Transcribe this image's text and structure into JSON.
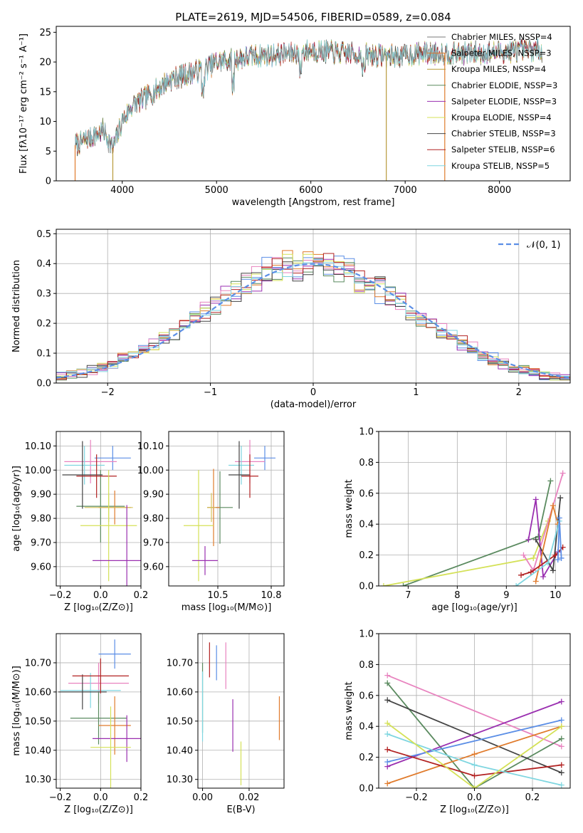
{
  "chart_data": [
    {
      "id": "spectrum",
      "type": "line",
      "title": "PLATE=2619, MJD=54506, FIBERID=0589, z=0.084",
      "xlabel": "wavelength [Angstrom, rest frame]",
      "ylabel": "Flux [fλ10⁻¹⁷ erg cm⁻² s⁻¹ A⁻¹]",
      "xlim": [
        3300,
        8750
      ],
      "ylim": [
        0,
        26
      ],
      "xticks": [
        4000,
        5000,
        6000,
        7000,
        8000
      ],
      "yticks": [
        0,
        5,
        10,
        15,
        20,
        25
      ],
      "legend_position": "top-right",
      "grid": false,
      "continuum": {
        "x": [
          3500,
          3800,
          3900,
          4000,
          4100,
          4300,
          4500,
          4700,
          4900,
          5000,
          5200,
          5400,
          5600,
          5800,
          6000,
          6300,
          6600,
          6900,
          7200,
          7500,
          7800,
          8100,
          8400
        ],
        "y": [
          6,
          8.5,
          5.5,
          10,
          12.5,
          14.5,
          17,
          18,
          19,
          20,
          20.5,
          21,
          21.2,
          21.5,
          22,
          21.5,
          21.2,
          21,
          21.5,
          21.5,
          21.5,
          21.8,
          22
        ]
      },
      "series": [
        {
          "name": "Chabrier MILES, N_SSP=4",
          "color": "#7a7a7a"
        },
        {
          "name": "Salpeter MILES, N_SSP=3",
          "color": "#e07b2c"
        },
        {
          "name": "Kroupa MILES, N_SSP=4",
          "color": "#b89a3a"
        },
        {
          "name": "Chabrier ELODIE, N_SSP=3",
          "color": "#5a8a5f"
        },
        {
          "name": "Salpeter ELODIE, N_SSP=3",
          "color": "#9a2fb0"
        },
        {
          "name": "Kroupa ELODIE, N_SSP=4",
          "color": "#d4e157"
        },
        {
          "name": "Chabrier STELIB, N_SSP=3",
          "color": "#444444"
        },
        {
          "name": "Salpeter STELIB, N_SSP=6",
          "color": "#b22222"
        },
        {
          "name": "Kroupa STELIB, N_SSP=5",
          "color": "#7fd6e0"
        }
      ]
    },
    {
      "id": "residuals",
      "type": "histogram",
      "xlabel": "(data-model)/error",
      "ylabel": "Normed distribution",
      "xlim": [
        -2.5,
        2.5
      ],
      "ylim": [
        0,
        0.515
      ],
      "xticks": [
        -2,
        -1,
        0,
        1,
        2
      ],
      "yticks": [
        0.0,
        0.1,
        0.2,
        0.3,
        0.4,
        0.5
      ],
      "grid": true,
      "legend_label": "𝒩(0, 1)",
      "legend_position": "top-right",
      "reference_curve": "normal(0,1)",
      "bin_width": 0.1,
      "bin_start": -2.5,
      "colors": [
        "#5b8ee6",
        "#e07b2c",
        "#5a8a5f",
        "#9a2fb0",
        "#e883bf",
        "#d4e157",
        "#444444",
        "#b22222",
        "#7fd6e0"
      ]
    },
    {
      "id": "age_vs_Z",
      "type": "scatter",
      "xlabel": "Z [log₁₀(Z/Z⊙)]",
      "ylabel": "age  [log₁₀(age/yr)]",
      "xlim": [
        -0.22,
        0.2
      ],
      "ylim": [
        9.52,
        10.16
      ],
      "xticks": [
        -0.2,
        0.0,
        0.2
      ],
      "yticks": [
        9.6,
        9.7,
        9.8,
        9.9,
        10.0,
        10.1
      ],
      "grid": true,
      "points": [
        {
          "x": 0.0,
          "y": 9.85,
          "xerr": 0.12,
          "yerr": 0.15,
          "color": "#5a8a5f"
        },
        {
          "x": 0.06,
          "y": 10.05,
          "xerr": 0.09,
          "yerr": 0.05,
          "color": "#5b8ee6"
        },
        {
          "x": -0.05,
          "y": 10.035,
          "xerr": 0.13,
          "yerr": 0.09,
          "color": "#e883bf"
        },
        {
          "x": -0.08,
          "y": 10.02,
          "xerr": 0.1,
          "yerr": 0.08,
          "color": "#7fd6e0"
        },
        {
          "x": -0.09,
          "y": 9.98,
          "xerr": 0.1,
          "yerr": 0.14,
          "color": "#444444"
        },
        {
          "x": -0.02,
          "y": 9.975,
          "xerr": 0.1,
          "yerr": 0.09,
          "color": "#b22222"
        },
        {
          "x": 0.07,
          "y": 9.845,
          "xerr": 0.08,
          "yerr": 0.07,
          "color": "#e07b2c"
        },
        {
          "x": 0.04,
          "y": 9.845,
          "xerr": 0.12,
          "yerr": 0.06,
          "color": "#d4c05a"
        },
        {
          "x": 0.04,
          "y": 9.77,
          "xerr": 0.14,
          "yerr": 0.23,
          "color": "#d4e157"
        },
        {
          "x": 0.13,
          "y": 9.625,
          "xerr": 0.17,
          "yerr": 0.23,
          "color": "#9a2fb0"
        }
      ]
    },
    {
      "id": "age_vs_mass",
      "type": "scatter",
      "xlabel": "mass [log₁₀(M/M⊙)]",
      "ylabel": "",
      "xlim": [
        10.27,
        10.81
      ],
      "ylim": [
        9.52,
        10.16
      ],
      "xticks": [
        10.5,
        10.75
      ],
      "yticks": [
        9.6,
        9.7,
        9.8,
        9.9,
        10.0,
        10.1
      ],
      "grid": true,
      "points": [
        {
          "x": 10.51,
          "y": 9.845,
          "xerr": 0.06,
          "yerr": 0.15,
          "color": "#5a8a5f"
        },
        {
          "x": 10.72,
          "y": 10.05,
          "xerr": 0.05,
          "yerr": 0.05,
          "color": "#5b8ee6"
        },
        {
          "x": 10.65,
          "y": 10.035,
          "xerr": 0.07,
          "yerr": 0.09,
          "color": "#e883bf"
        },
        {
          "x": 10.61,
          "y": 10.02,
          "xerr": 0.06,
          "yerr": 0.08,
          "color": "#7fd6e0"
        },
        {
          "x": 10.6,
          "y": 9.98,
          "xerr": 0.05,
          "yerr": 0.14,
          "color": "#444444"
        },
        {
          "x": 10.65,
          "y": 9.975,
          "xerr": 0.04,
          "yerr": 0.09,
          "color": "#b22222"
        },
        {
          "x": 10.48,
          "y": 9.845,
          "xerr": 0.03,
          "yerr": 0.16,
          "color": "#e07b2c"
        },
        {
          "x": 10.47,
          "y": 9.845,
          "xerr": 0.02,
          "yerr": 0.06,
          "color": "#d4c05a"
        },
        {
          "x": 10.41,
          "y": 9.77,
          "xerr": 0.07,
          "yerr": 0.23,
          "color": "#d4e157"
        },
        {
          "x": 10.44,
          "y": 9.625,
          "xerr": 0.06,
          "yerr": 0.06,
          "color": "#9a2fb0"
        }
      ]
    },
    {
      "id": "massweight_vs_age",
      "type": "line",
      "xlabel": "age  [log₁₀(age/yr)]",
      "ylabel": "mass weight",
      "xlim": [
        6.4,
        10.3
      ],
      "ylim": [
        0,
        1.0
      ],
      "xticks": [
        7,
        8,
        9,
        10
      ],
      "yticks": [
        0.0,
        0.2,
        0.4,
        0.6,
        0.8,
        1.0
      ],
      "grid": true,
      "series": [
        {
          "color": "#5a8a5f",
          "x": [
            6.9,
            9.65,
            9.9
          ],
          "y": [
            0.0,
            0.32,
            0.68
          ]
        },
        {
          "color": "#d4e157",
          "x": [
            6.5,
            9.55,
            9.85
          ],
          "y": [
            0.0,
            0.18,
            0.42
          ]
        },
        {
          "color": "#9a2fb0",
          "x": [
            9.45,
            9.6,
            9.75,
            10.05
          ],
          "y": [
            0.3,
            0.56,
            0.06,
            0.22
          ]
        },
        {
          "color": "#e883bf",
          "x": [
            9.35,
            9.55,
            10.15
          ],
          "y": [
            0.2,
            0.1,
            0.73
          ]
        },
        {
          "color": "#444444",
          "x": [
            9.6,
            9.95,
            10.1
          ],
          "y": [
            0.3,
            0.1,
            0.57
          ]
        },
        {
          "color": "#e07b2c",
          "x": [
            9.6,
            9.95,
            10.05
          ],
          "y": [
            0.03,
            0.52,
            0.4
          ]
        },
        {
          "color": "#b22222",
          "x": [
            9.3,
            9.5,
            10.0,
            10.15
          ],
          "y": [
            0.07,
            0.09,
            0.2,
            0.25
          ]
        },
        {
          "color": "#7fd6e0",
          "x": [
            9.2,
            9.85,
            10.08
          ],
          "y": [
            0.0,
            0.15,
            0.42
          ]
        },
        {
          "color": "#5b8ee6",
          "x": [
            10.05,
            10.08,
            10.12
          ],
          "y": [
            0.17,
            0.44,
            0.18
          ]
        }
      ]
    },
    {
      "id": "mass_vs_Z",
      "type": "scatter",
      "xlabel": "Z [log₁₀(Z/Z⊙)]",
      "ylabel": "mass [log₁₀(M/M⊙)]",
      "xlim": [
        -0.22,
        0.2
      ],
      "ylim": [
        10.27,
        10.8
      ],
      "xticks": [
        -0.2,
        0.0,
        0.2
      ],
      "yticks": [
        10.3,
        10.4,
        10.5,
        10.6,
        10.7
      ],
      "grid": true,
      "points": [
        {
          "x": 0.07,
          "y": 10.73,
          "xerr": 0.08,
          "yerr": 0.05,
          "color": "#5b8ee6"
        },
        {
          "x": -0.01,
          "y": 10.63,
          "xerr": 0.15,
          "yerr": 0.07,
          "color": "#e883bf"
        },
        {
          "x": -0.05,
          "y": 10.605,
          "xerr": 0.15,
          "yerr": 0.06,
          "color": "#7fd6e0"
        },
        {
          "x": -0.09,
          "y": 10.6,
          "xerr": 0.12,
          "yerr": 0.06,
          "color": "#444444"
        },
        {
          "x": 0.0,
          "y": 10.655,
          "xerr": 0.14,
          "yerr": 0.06,
          "color": "#b22222"
        },
        {
          "x": -0.01,
          "y": 10.51,
          "xerr": 0.14,
          "yerr": 0.09,
          "color": "#5a8a5f"
        },
        {
          "x": 0.07,
          "y": 10.485,
          "xerr": 0.08,
          "yerr": 0.1,
          "color": "#e07b2c"
        },
        {
          "x": 0.13,
          "y": 10.44,
          "xerr": 0.17,
          "yerr": 0.08,
          "color": "#9a2fb0"
        },
        {
          "x": 0.05,
          "y": 10.41,
          "xerr": 0.1,
          "yerr": 0.14,
          "color": "#d4e157"
        }
      ]
    },
    {
      "id": "mass_vs_ebv",
      "type": "scatter",
      "xlabel": "E(B-V)",
      "ylabel": "",
      "xlim": [
        -0.002,
        0.035
      ],
      "ylim": [
        10.27,
        10.8
      ],
      "xticks": [
        0.0,
        0.02
      ],
      "yticks": [
        10.3,
        10.4,
        10.5,
        10.6,
        10.7
      ],
      "grid": true,
      "points": [
        {
          "x": 0.0,
          "y": 10.58,
          "yerr": 0.12,
          "color": "#5a8a5f"
        },
        {
          "x": 0.0,
          "y": 10.55,
          "yerr": 0.12,
          "color": "#7fd6e0"
        },
        {
          "x": 0.003,
          "y": 10.71,
          "yerr": 0.06,
          "color": "#b22222"
        },
        {
          "x": 0.006,
          "y": 10.7,
          "yerr": 0.06,
          "color": "#5b8ee6"
        },
        {
          "x": 0.01,
          "y": 10.69,
          "yerr": 0.08,
          "color": "#e883bf"
        },
        {
          "x": 0.013,
          "y": 10.485,
          "yerr": 0.09,
          "color": "#9a2fb0"
        },
        {
          "x": 0.0165,
          "y": 10.355,
          "yerr": 0.075,
          "color": "#d4e157"
        },
        {
          "x": 0.033,
          "y": 10.51,
          "yerr": 0.075,
          "color": "#e07b2c"
        }
      ]
    },
    {
      "id": "massweight_vs_Z",
      "type": "line",
      "xlabel": "Z [log₁₀(Z/Z⊙)]",
      "ylabel": "mass weight",
      "xlim": [
        -0.33,
        0.33
      ],
      "ylim": [
        0,
        1.0
      ],
      "xticks": [
        -0.2,
        0.0,
        0.2
      ],
      "yticks": [
        0.0,
        0.2,
        0.4,
        0.6,
        0.8,
        1.0
      ],
      "grid": true,
      "series": [
        {
          "color": "#e883bf",
          "x": [
            -0.3,
            0.3
          ],
          "y": [
            0.73,
            0.27
          ]
        },
        {
          "color": "#5a8a5f",
          "x": [
            -0.3,
            0.0,
            0.3
          ],
          "y": [
            0.68,
            0.0,
            0.32
          ]
        },
        {
          "color": "#444444",
          "x": [
            -0.3,
            0.3
          ],
          "y": [
            0.57,
            0.1
          ]
        },
        {
          "color": "#9a2fb0",
          "x": [
            -0.3,
            0.3
          ],
          "y": [
            0.14,
            0.56
          ]
        },
        {
          "color": "#5b8ee6",
          "x": [
            -0.3,
            0.3
          ],
          "y": [
            0.17,
            0.44
          ]
        },
        {
          "color": "#e07b2c",
          "x": [
            -0.3,
            0.0,
            0.3
          ],
          "y": [
            0.03,
            0.22,
            0.4
          ]
        },
        {
          "color": "#b22222",
          "x": [
            -0.3,
            0.0,
            0.3
          ],
          "y": [
            0.25,
            0.08,
            0.15
          ]
        },
        {
          "color": "#7fd6e0",
          "x": [
            -0.3,
            0.0,
            0.3
          ],
          "y": [
            0.35,
            0.15,
            0.02
          ]
        },
        {
          "color": "#d4e157",
          "x": [
            -0.3,
            0.0,
            0.3
          ],
          "y": [
            0.42,
            0.0,
            0.4
          ]
        }
      ]
    }
  ]
}
